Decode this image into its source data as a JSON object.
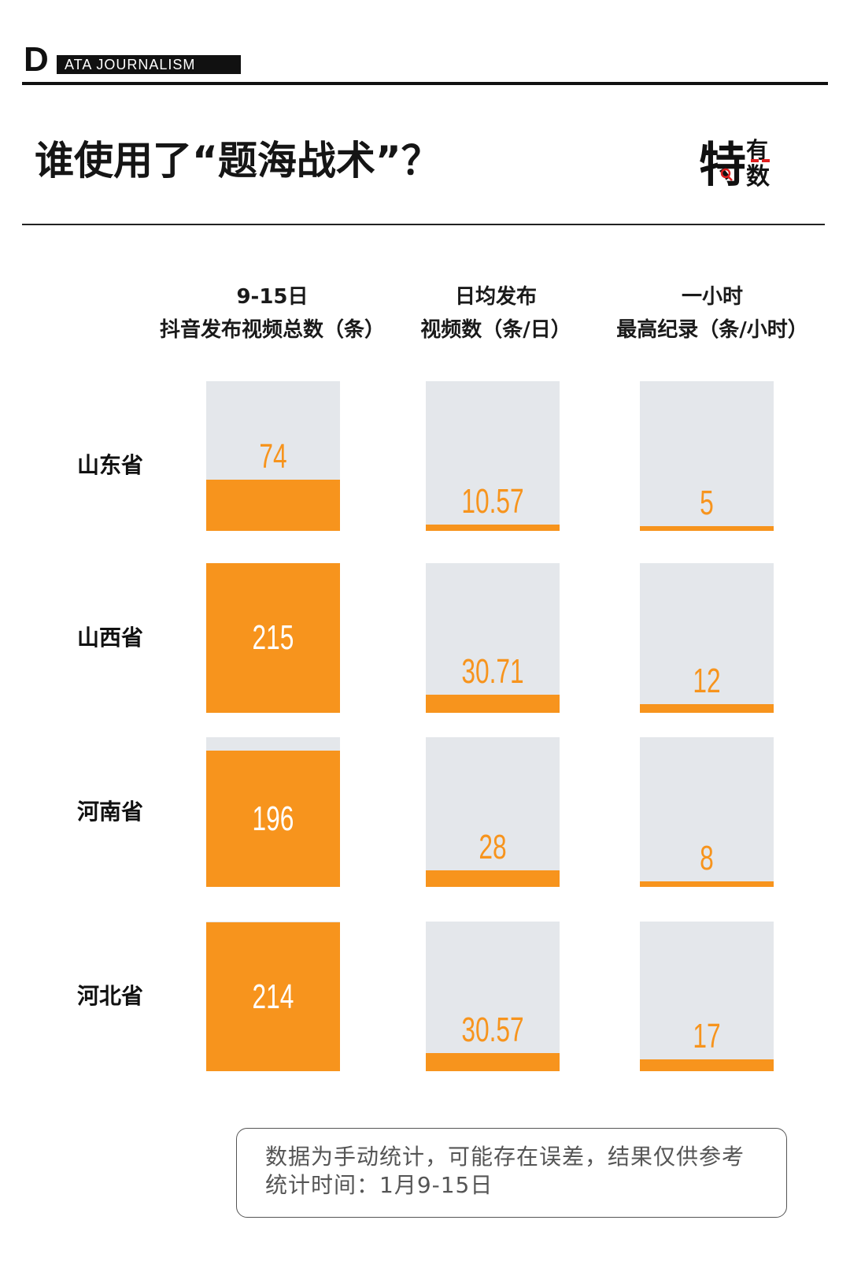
{
  "brand": {
    "letter": "D",
    "text": "ATA JOURNALISM"
  },
  "title": "谁使用了“题海战术”？",
  "logo": {
    "top": "特",
    "right_top": "有",
    "right_bottom": "数"
  },
  "columns": [
    {
      "line1": "9-15日",
      "line2": "抖音发布视频总数（条）",
      "max": 215
    },
    {
      "line1": "日均发布",
      "line2": "视频数（条/日）",
      "max": 250
    },
    {
      "line1": "一小时",
      "line2": "最高纪录（条/小时）",
      "max": 215
    }
  ],
  "chart_data": {
    "type": "bar",
    "categories": [
      "山东省",
      "山西省",
      "河南省",
      "河北省"
    ],
    "series": [
      {
        "name": "9-15日 抖音发布视频总数（条）",
        "values": [
          74,
          215,
          196,
          214
        ],
        "labels": [
          "74",
          "215",
          "196",
          "214"
        ]
      },
      {
        "name": "日均发布 视频数（条/日）",
        "values": [
          10.57,
          30.71,
          28,
          30.57
        ],
        "labels": [
          "10.57",
          "30.71",
          "28",
          "30.57"
        ]
      },
      {
        "name": "一小时 最高纪录（条/小时）",
        "values": [
          5,
          12,
          8,
          17
        ],
        "labels": [
          "5",
          "12",
          "8",
          "17"
        ]
      }
    ],
    "colors": {
      "fill": "#f7941d",
      "track": "#e4e7eb"
    }
  },
  "note": {
    "line1": "数据为手动统计，可能存在误差，结果仅供参考",
    "line2": "统计时间：1月9-15日"
  }
}
